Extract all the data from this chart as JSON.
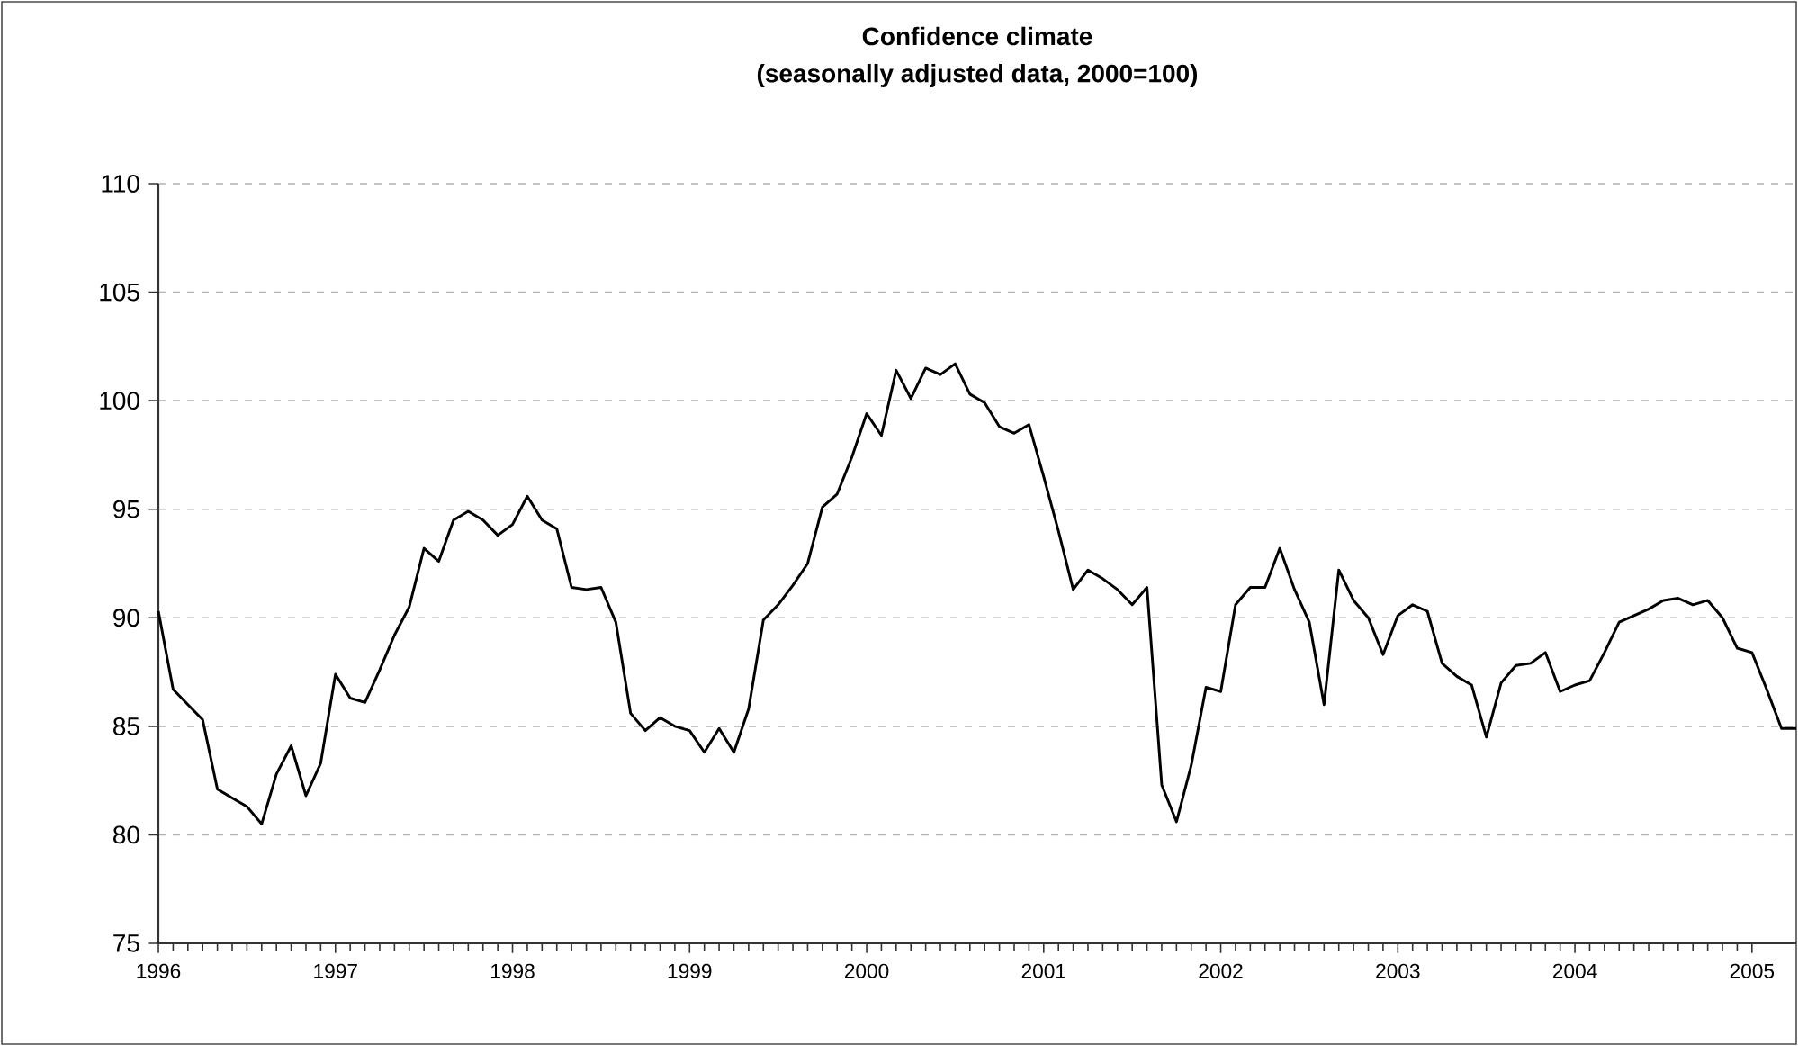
{
  "chart_data": {
    "type": "line",
    "title": "Confidence climate",
    "subtitle": "(seasonally adjusted data, 2000=100)",
    "x": [
      "1996-01",
      "1996-02",
      "1996-03",
      "1996-04",
      "1996-05",
      "1996-06",
      "1996-07",
      "1996-08",
      "1996-09",
      "1996-10",
      "1996-11",
      "1996-12",
      "1997-01",
      "1997-02",
      "1997-03",
      "1997-04",
      "1997-05",
      "1997-06",
      "1997-07",
      "1997-08",
      "1997-09",
      "1997-10",
      "1997-11",
      "1997-12",
      "1998-01",
      "1998-02",
      "1998-03",
      "1998-04",
      "1998-05",
      "1998-06",
      "1998-07",
      "1998-08",
      "1998-09",
      "1998-10",
      "1998-11",
      "1998-12",
      "1999-01",
      "1999-02",
      "1999-03",
      "1999-04",
      "1999-05",
      "1999-06",
      "1999-07",
      "1999-08",
      "1999-09",
      "1999-10",
      "1999-11",
      "1999-12",
      "2000-01",
      "2000-02",
      "2000-03",
      "2000-04",
      "2000-05",
      "2000-06",
      "2000-07",
      "2000-08",
      "2000-09",
      "2000-10",
      "2000-11",
      "2000-12",
      "2001-01",
      "2001-02",
      "2001-03",
      "2001-04",
      "2001-05",
      "2001-06",
      "2001-07",
      "2001-08",
      "2001-09",
      "2001-10",
      "2001-11",
      "2001-12",
      "2002-01",
      "2002-02",
      "2002-03",
      "2002-04",
      "2002-05",
      "2002-06",
      "2002-07",
      "2002-08",
      "2002-09",
      "2002-10",
      "2002-11",
      "2002-12",
      "2003-01",
      "2003-02",
      "2003-03",
      "2003-04",
      "2003-05",
      "2003-06",
      "2003-07",
      "2003-08",
      "2003-09",
      "2003-10",
      "2003-11",
      "2003-12",
      "2004-01",
      "2004-02",
      "2004-03",
      "2004-04",
      "2004-05",
      "2004-06",
      "2004-07",
      "2004-08",
      "2004-09",
      "2004-10",
      "2004-11",
      "2004-12",
      "2005-01",
      "2005-02",
      "2005-03",
      "2005-04"
    ],
    "values": [
      90.3,
      86.7,
      86.0,
      85.3,
      82.1,
      81.7,
      81.3,
      80.5,
      82.8,
      84.1,
      81.8,
      83.3,
      87.4,
      86.3,
      86.1,
      87.6,
      89.2,
      90.5,
      93.2,
      92.6,
      94.5,
      94.9,
      94.5,
      93.8,
      94.3,
      95.6,
      94.5,
      94.1,
      91.4,
      91.3,
      91.4,
      89.8,
      85.6,
      84.8,
      85.4,
      85.0,
      84.8,
      83.8,
      84.9,
      83.8,
      85.8,
      89.9,
      90.6,
      91.5,
      92.5,
      95.1,
      95.7,
      97.4,
      99.4,
      98.4,
      101.4,
      100.1,
      101.5,
      101.2,
      101.7,
      100.3,
      99.9,
      98.8,
      98.5,
      98.9,
      96.5,
      94.0,
      91.3,
      92.2,
      91.8,
      91.3,
      90.6,
      91.4,
      82.3,
      80.6,
      83.2,
      86.8,
      86.6,
      90.6,
      91.4,
      91.4,
      93.2,
      91.3,
      89.8,
      86.0,
      92.2,
      90.8,
      90.0,
      88.3,
      90.1,
      90.6,
      90.3,
      87.9,
      87.3,
      86.9,
      84.5,
      87.0,
      87.8,
      87.9,
      88.4,
      86.6,
      86.9,
      87.1,
      88.4,
      89.8,
      90.1,
      90.4,
      90.8,
      90.9,
      90.6,
      90.8,
      90.0,
      88.6,
      88.4,
      86.7,
      84.9,
      84.9
    ],
    "color": "#000000",
    "line_style": "solid",
    "marker": "none",
    "xlim": [
      "1996-01",
      "2005-04"
    ],
    "xticks": [
      "1996",
      "1997",
      "1998",
      "1999",
      "2000",
      "2001",
      "2002",
      "2003",
      "2004",
      "2005"
    ],
    "ylim": [
      75,
      110
    ],
    "yticks": [
      75,
      80,
      85,
      90,
      95,
      100,
      105,
      110
    ],
    "grid": "y"
  }
}
